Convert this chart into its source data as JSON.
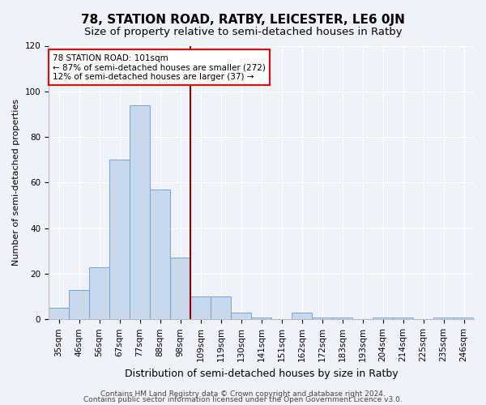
{
  "title": "78, STATION ROAD, RATBY, LEICESTER, LE6 0JN",
  "subtitle": "Size of property relative to semi-detached houses in Ratby",
  "xlabel": "Distribution of semi-detached houses by size in Ratby",
  "ylabel": "Number of semi-detached properties",
  "categories": [
    "35sqm",
    "46sqm",
    "56sqm",
    "67sqm",
    "77sqm",
    "88sqm",
    "98sqm",
    "109sqm",
    "119sqm",
    "130sqm",
    "141sqm",
    "151sqm",
    "162sqm",
    "172sqm",
    "183sqm",
    "193sqm",
    "204sqm",
    "214sqm",
    "225sqm",
    "235sqm",
    "246sqm"
  ],
  "values": [
    5,
    13,
    23,
    70,
    94,
    57,
    27,
    10,
    10,
    3,
    1,
    0,
    3,
    1,
    1,
    0,
    1,
    1,
    0,
    1,
    1
  ],
  "bar_color": "#c9d9ed",
  "bar_edge_color": "#7ba3c8",
  "vline_color": "#8b0000",
  "annotation_text": "78 STATION ROAD: 101sqm\n← 87% of semi-detached houses are smaller (272)\n12% of semi-detached houses are larger (37) →",
  "annotation_box_color": "white",
  "annotation_box_edge_color": "red",
  "footer_line1": "Contains HM Land Registry data © Crown copyright and database right 2024.",
  "footer_line2": "Contains public sector information licensed under the Open Government Licence v3.0.",
  "background_color": "#eef2f9",
  "ylim": [
    0,
    120
  ],
  "property_bin_index": 6,
  "title_fontsize": 11,
  "subtitle_fontsize": 9.5,
  "ylabel_fontsize": 8,
  "xlabel_fontsize": 9,
  "tick_fontsize": 7.5,
  "footer_fontsize": 6.5
}
